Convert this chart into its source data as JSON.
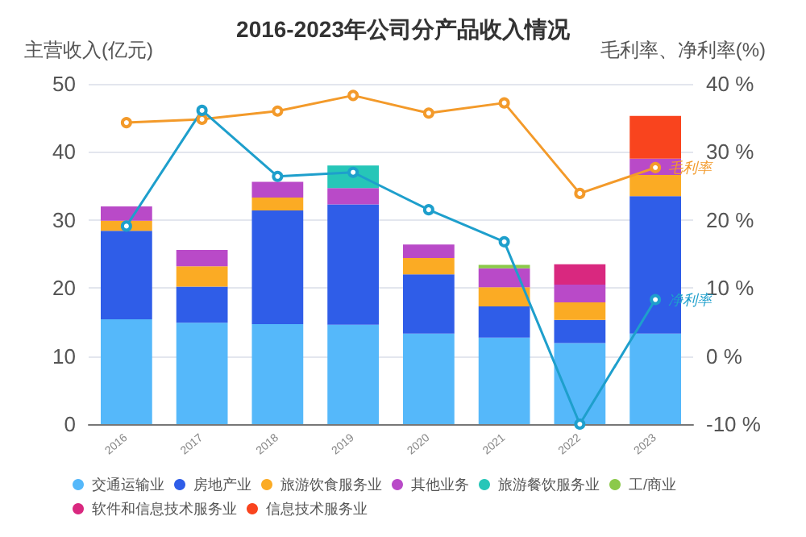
{
  "chart_data": {
    "type": "bar",
    "title": "2016-2023年公司分产品收入情况",
    "ylabel": "主营收入(亿元)",
    "y2label": "毛利率、净利率(%)",
    "categories": [
      "2016",
      "2017",
      "2018",
      "2019",
      "2020",
      "2021",
      "2022",
      "2023"
    ],
    "stacked": true,
    "grid": "y",
    "legend": "bottom",
    "marker": "circle",
    "ylim": [
      0,
      50
    ],
    "yticks": [
      0,
      10,
      20,
      30,
      40,
      50
    ],
    "y2lim": [
      -10,
      40
    ],
    "y2ticks": [
      {
        "value": -10,
        "label": "-10 %"
      },
      {
        "value": 0,
        "label": "0 %"
      },
      {
        "value": 10,
        "label": "10 %"
      },
      {
        "value": 20,
        "label": "20 %"
      },
      {
        "value": 30,
        "label": "30 %"
      },
      {
        "value": 40,
        "label": "40 %"
      }
    ],
    "series": [
      {
        "name": "交通运输业",
        "color": "#55b8fa",
        "values": [
          15.4,
          14.9,
          14.7,
          14.6,
          13.3,
          12.7,
          11.9,
          13.3
        ]
      },
      {
        "name": "房地产业",
        "color": "#2f5de8",
        "values": [
          13.0,
          5.3,
          16.7,
          17.7,
          8.7,
          4.6,
          3.4,
          20.2
        ]
      },
      {
        "name": "旅游饮食服务业",
        "color": "#fbab24",
        "values": [
          1.5,
          3.0,
          1.9,
          null,
          2.4,
          2.8,
          2.6,
          3.1
        ]
      },
      {
        "name": "其他业务",
        "color": "#b94ac8",
        "values": [
          2.1,
          2.4,
          2.3,
          2.4,
          2.0,
          2.8,
          2.6,
          2.4
        ]
      },
      {
        "name": "旅游餐饮服务业",
        "color": "#26c6b8",
        "values": [
          null,
          null,
          null,
          3.3,
          null,
          null,
          null,
          null
        ]
      },
      {
        "name": "工/商业",
        "color": "#8bc94a",
        "values": [
          null,
          null,
          null,
          null,
          null,
          0.5,
          null,
          null
        ]
      },
      {
        "name": "软件和信息技术服务业",
        "color": "#d9287f",
        "values": [
          null,
          null,
          null,
          null,
          null,
          null,
          3.0,
          null
        ]
      },
      {
        "name": "信息技术服务业",
        "color": "#f9441e",
        "values": [
          null,
          null,
          null,
          null,
          null,
          null,
          null,
          6.3
        ]
      },
      {
        "name": "毛利率",
        "type": "line",
        "axis": "y2",
        "color": "#f39a2a",
        "values": [
          34.3,
          34.8,
          36.0,
          38.3,
          35.7,
          37.2,
          23.9,
          27.7
        ]
      },
      {
        "name": "净利率",
        "type": "line",
        "axis": "y2",
        "color": "#1e9fcc",
        "values": [
          19.1,
          36.1,
          26.4,
          27.0,
          21.5,
          16.8,
          -10,
          8.3
        ]
      }
    ]
  }
}
